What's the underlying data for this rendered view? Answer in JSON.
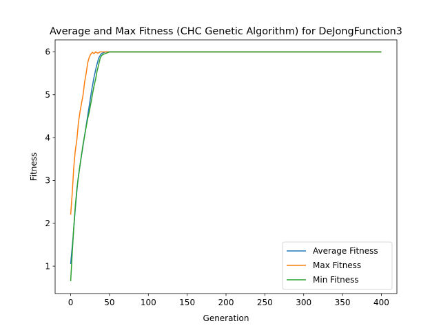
{
  "chart_data": {
    "type": "line",
    "title": "Average and Max Fitness (CHC Genetic Algorithm) for DeJongFunction3",
    "xlabel": "Generation",
    "ylabel": "Fitness",
    "xlim": [
      -20,
      420
    ],
    "ylim": [
      0.36,
      6.28
    ],
    "xticks": [
      0,
      50,
      100,
      150,
      200,
      250,
      300,
      350,
      400
    ],
    "yticks": [
      1,
      2,
      3,
      4,
      5,
      6
    ],
    "grid": false,
    "legend_position": "lower-right",
    "series": [
      {
        "name": "Average Fitness",
        "color": "#1f77b4",
        "points": [
          [
            0,
            1.05
          ],
          [
            3,
            1.65
          ],
          [
            6,
            2.35
          ],
          [
            9,
            2.95
          ],
          [
            12,
            3.35
          ],
          [
            15,
            3.7
          ],
          [
            18,
            4.05
          ],
          [
            21,
            4.4
          ],
          [
            24,
            4.75
          ],
          [
            27,
            5.1
          ],
          [
            30,
            5.4
          ],
          [
            33,
            5.65
          ],
          [
            36,
            5.85
          ],
          [
            39,
            5.95
          ],
          [
            42,
            5.98
          ],
          [
            45,
            6.0
          ],
          [
            400,
            6.0
          ]
        ]
      },
      {
        "name": "Max Fitness",
        "color": "#ff7f0e",
        "points": [
          [
            0,
            2.2
          ],
          [
            2,
            2.7
          ],
          [
            4,
            3.3
          ],
          [
            6,
            3.7
          ],
          [
            8,
            3.95
          ],
          [
            10,
            4.35
          ],
          [
            12,
            4.6
          ],
          [
            14,
            4.8
          ],
          [
            16,
            5.0
          ],
          [
            18,
            5.3
          ],
          [
            20,
            5.5
          ],
          [
            22,
            5.75
          ],
          [
            24,
            5.88
          ],
          [
            26,
            5.95
          ],
          [
            28,
            5.99
          ],
          [
            30,
            5.96
          ],
          [
            32,
            6.0
          ],
          [
            35,
            5.97
          ],
          [
            38,
            6.0
          ],
          [
            400,
            6.0
          ]
        ]
      },
      {
        "name": "Min Fitness",
        "color": "#2ca02c",
        "points": [
          [
            0,
            0.65
          ],
          [
            2,
            1.3
          ],
          [
            4,
            1.9
          ],
          [
            6,
            2.4
          ],
          [
            8,
            2.8
          ],
          [
            10,
            3.1
          ],
          [
            12,
            3.35
          ],
          [
            14,
            3.6
          ],
          [
            16,
            3.85
          ],
          [
            18,
            4.05
          ],
          [
            20,
            4.25
          ],
          [
            22,
            4.45
          ],
          [
            24,
            4.6
          ],
          [
            26,
            4.8
          ],
          [
            28,
            5.0
          ],
          [
            30,
            5.2
          ],
          [
            32,
            5.35
          ],
          [
            34,
            5.55
          ],
          [
            36,
            5.7
          ],
          [
            38,
            5.85
          ],
          [
            40,
            5.92
          ],
          [
            43,
            5.95
          ],
          [
            46,
            5.97
          ],
          [
            50,
            6.0
          ],
          [
            400,
            6.0
          ]
        ]
      }
    ]
  }
}
